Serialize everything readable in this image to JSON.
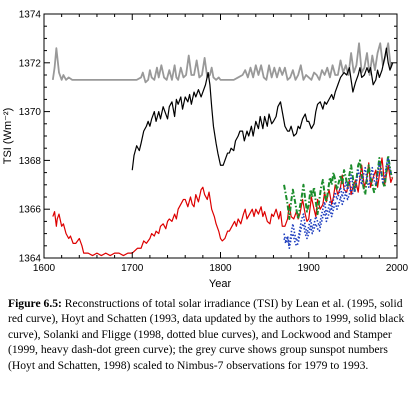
{
  "chart_data": {
    "type": "line",
    "xlabel": "Year",
    "ylabel": "TSI (Wm⁻²)",
    "xlim": [
      1600,
      2000
    ],
    "ylim": [
      1364,
      1374
    ],
    "xticks": [
      "1600",
      "1700",
      "1800",
      "1900",
      "2000"
    ],
    "yticks": [
      "1364",
      "1366",
      "1368",
      "1370",
      "1372",
      "1374"
    ],
    "grid": false,
    "series": [
      {
        "color": "#999999",
        "style": "solid",
        "x": [
          1610,
          1612,
          1614,
          1617,
          1620,
          1622,
          1625,
          1628,
          1632,
          1640,
          1650,
          1660,
          1670,
          1680,
          1690,
          1700,
          1705,
          1710,
          1712,
          1715,
          1718,
          1720,
          1722,
          1725,
          1728,
          1730,
          1733,
          1736,
          1739,
          1742,
          1745,
          1748,
          1750,
          1752,
          1755,
          1758,
          1761,
          1764,
          1767,
          1770,
          1773,
          1776,
          1779,
          1782,
          1785,
          1788,
          1790,
          1792,
          1795,
          1798,
          1800,
          1805,
          1810,
          1815,
          1820,
          1825,
          1828,
          1831,
          1834,
          1837,
          1840,
          1843,
          1846,
          1849,
          1852,
          1855,
          1858,
          1861,
          1864,
          1867,
          1870,
          1873,
          1876,
          1879,
          1882,
          1885,
          1888,
          1891,
          1894,
          1897,
          1900,
          1903,
          1906,
          1909,
          1912,
          1915,
          1918,
          1921,
          1924,
          1927,
          1930,
          1933,
          1936,
          1939,
          1942,
          1945,
          1948,
          1951,
          1954,
          1957,
          1960,
          1963,
          1966,
          1969,
          1972,
          1975,
          1978,
          1981,
          1984,
          1987,
          1990,
          1993,
          1995
        ],
        "y": [
          1371.3,
          1371.8,
          1372.6,
          1371.6,
          1371.3,
          1371.5,
          1371.3,
          1371.4,
          1371.3,
          1371.3,
          1371.3,
          1371.3,
          1371.3,
          1371.3,
          1371.3,
          1371.3,
          1371.3,
          1371.4,
          1371.6,
          1371.2,
          1371.3,
          1371.7,
          1371.4,
          1371.3,
          1371.8,
          1371.4,
          1371.9,
          1371.4,
          1371.3,
          1371.7,
          1371.3,
          1371.9,
          1371.4,
          1371.3,
          1371.8,
          1371.4,
          1371.5,
          1372.3,
          1371.5,
          1371.5,
          1372.1,
          1371.4,
          1371.5,
          1372.2,
          1371.4,
          1371.5,
          1371.8,
          1371.4,
          1371.3,
          1371.4,
          1371.3,
          1371.3,
          1371.3,
          1371.3,
          1371.4,
          1371.5,
          1371.7,
          1371.4,
          1371.8,
          1371.4,
          1371.9,
          1371.5,
          1371.9,
          1371.4,
          1371.3,
          1371.9,
          1371.4,
          1371.8,
          1371.4,
          1371.8,
          1371.5,
          1371.8,
          1371.3,
          1371.4,
          1371.7,
          1371.3,
          1371.5,
          1371.9,
          1371.3,
          1371.5,
          1371.4,
          1371.3,
          1371.6,
          1371.5,
          1371.3,
          1371.7,
          1371.5,
          1371.8,
          1371.4,
          1371.9,
          1371.5,
          1371.5,
          1372.1,
          1371.6,
          1371.9,
          1371.5,
          1372.4,
          1371.6,
          1371.9,
          1372.8,
          1371.6,
          1371.8,
          1372.4,
          1371.5,
          1372.3,
          1371.7,
          1372.4,
          1372.8,
          1371.9,
          1372.3,
          1372.8,
          1371.8,
          1372.0
        ]
      },
      {
        "color": "#000000",
        "style": "solid",
        "x": [
          1700,
          1702,
          1705,
          1708,
          1710,
          1713,
          1716,
          1718,
          1720,
          1722,
          1725,
          1727,
          1730,
          1732,
          1735,
          1737,
          1740,
          1742,
          1745,
          1748,
          1750,
          1752,
          1755,
          1757,
          1760,
          1763,
          1765,
          1767,
          1770,
          1772,
          1775,
          1778,
          1780,
          1783,
          1786,
          1788,
          1790,
          1792,
          1795,
          1797,
          1800,
          1803,
          1806,
          1808,
          1810,
          1812,
          1815,
          1817,
          1820,
          1822,
          1825,
          1827,
          1830,
          1832,
          1835,
          1837,
          1840,
          1843,
          1845,
          1848,
          1850,
          1853,
          1855,
          1858,
          1860,
          1863,
          1865,
          1868,
          1870,
          1873,
          1876,
          1878,
          1880,
          1883,
          1886,
          1888,
          1890,
          1893,
          1896,
          1898,
          1900,
          1903,
          1906,
          1908,
          1910,
          1913,
          1916,
          1918,
          1920,
          1923,
          1926,
          1928,
          1930,
          1933,
          1936,
          1938,
          1940,
          1943,
          1946,
          1948,
          1950,
          1953,
          1956,
          1958,
          1960,
          1963,
          1966,
          1968,
          1970,
          1973,
          1976,
          1978,
          1980,
          1983,
          1986,
          1988,
          1990,
          1992,
          1995
        ],
        "y": [
          1367.6,
          1368.2,
          1368.6,
          1368.4,
          1368.7,
          1369.2,
          1369.4,
          1369.6,
          1369.4,
          1369.7,
          1370.0,
          1369.6,
          1370.0,
          1369.7,
          1370.2,
          1370.0,
          1369.7,
          1370.2,
          1370.4,
          1369.8,
          1370.5,
          1370.3,
          1370.6,
          1370.1,
          1370.6,
          1370.4,
          1370.7,
          1370.3,
          1370.8,
          1370.6,
          1370.9,
          1370.6,
          1370.8,
          1371.1,
          1371.6,
          1371.1,
          1370.2,
          1369.4,
          1368.7,
          1368.3,
          1367.8,
          1367.8,
          1368.1,
          1368.3,
          1368.3,
          1368.5,
          1368.4,
          1368.8,
          1369.0,
          1369.2,
          1369.2,
          1368.8,
          1369.2,
          1369.0,
          1369.4,
          1369.0,
          1369.6,
          1369.3,
          1369.8,
          1369.3,
          1369.8,
          1369.4,
          1369.9,
          1369.5,
          1369.6,
          1369.8,
          1370.2,
          1370.4,
          1370.0,
          1369.4,
          1369.2,
          1369.2,
          1369.4,
          1369.0,
          1369.1,
          1369.4,
          1369.3,
          1369.7,
          1369.9,
          1369.6,
          1369.6,
          1369.3,
          1369.5,
          1370.0,
          1370.3,
          1370.4,
          1370.1,
          1370.4,
          1370.3,
          1370.5,
          1370.7,
          1370.5,
          1370.8,
          1371.1,
          1371.4,
          1371.5,
          1371.6,
          1371.5,
          1371.8,
          1371.3,
          1370.8,
          1371.2,
          1371.5,
          1371.8,
          1371.4,
          1371.5,
          1371.8,
          1371.6,
          1371.8,
          1371.1,
          1371.3,
          1371.7,
          1371.4,
          1371.7,
          1372.2,
          1372.6,
          1372.0,
          1371.7,
          1372.0
        ]
      },
      {
        "color": "#dd0000",
        "style": "solid",
        "x": [
          1610,
          1612,
          1614,
          1615,
          1617,
          1620,
          1622,
          1625,
          1628,
          1630,
          1633,
          1636,
          1640,
          1643,
          1645,
          1650,
          1655,
          1660,
          1665,
          1670,
          1675,
          1680,
          1685,
          1690,
          1695,
          1700,
          1703,
          1706,
          1710,
          1713,
          1716,
          1720,
          1722,
          1725,
          1727,
          1730,
          1732,
          1735,
          1738,
          1740,
          1742,
          1745,
          1748,
          1750,
          1752,
          1755,
          1758,
          1760,
          1763,
          1766,
          1768,
          1770,
          1772,
          1775,
          1778,
          1780,
          1782,
          1785,
          1787,
          1790,
          1793,
          1795,
          1798,
          1800,
          1802,
          1805,
          1808,
          1810,
          1813,
          1816,
          1818,
          1820,
          1823,
          1826,
          1828,
          1830,
          1833,
          1836,
          1838,
          1840,
          1843,
          1846,
          1848,
          1850,
          1853,
          1856,
          1858,
          1860,
          1863,
          1866,
          1868,
          1870,
          1873,
          1876,
          1878,
          1880,
          1883,
          1886,
          1888,
          1890,
          1893,
          1896,
          1898,
          1900,
          1903,
          1906,
          1908,
          1910,
          1913,
          1916,
          1918,
          1920,
          1923,
          1926,
          1928,
          1930,
          1933,
          1936,
          1938,
          1940,
          1943,
          1946,
          1948,
          1950,
          1953,
          1956,
          1958,
          1960,
          1963,
          1966,
          1968,
          1970,
          1973,
          1976,
          1978,
          1980,
          1983,
          1986,
          1988,
          1990,
          1993,
          1995
        ],
        "y": [
          1365.7,
          1365.9,
          1365.3,
          1365.6,
          1365.8,
          1365.3,
          1365.4,
          1365.0,
          1364.8,
          1364.9,
          1364.6,
          1364.6,
          1364.8,
          1364.5,
          1364.2,
          1364.2,
          1364.1,
          1364.2,
          1364.1,
          1364.2,
          1364.1,
          1364.2,
          1364.2,
          1364.1,
          1364.2,
          1364.2,
          1364.3,
          1364.4,
          1364.4,
          1364.7,
          1364.6,
          1364.8,
          1365.0,
          1364.9,
          1365.1,
          1365.0,
          1365.3,
          1365.4,
          1365.2,
          1365.5,
          1365.6,
          1365.5,
          1365.8,
          1365.6,
          1366.0,
          1366.2,
          1366.4,
          1366.4,
          1366.1,
          1366.5,
          1366.2,
          1366.1,
          1366.6,
          1366.3,
          1366.8,
          1366.9,
          1366.6,
          1366.4,
          1366.7,
          1366.0,
          1365.7,
          1365.4,
          1365.1,
          1364.8,
          1364.7,
          1364.8,
          1365.1,
          1365.1,
          1365.3,
          1365.5,
          1365.3,
          1365.6,
          1365.4,
          1365.8,
          1366.0,
          1365.6,
          1365.8,
          1366.0,
          1365.7,
          1366.0,
          1365.8,
          1366.1,
          1365.7,
          1365.9,
          1365.5,
          1365.4,
          1365.8,
          1365.7,
          1366.0,
          1365.6,
          1365.9,
          1365.3,
          1365.3,
          1365.6,
          1366.2,
          1365.7,
          1365.6,
          1365.9,
          1365.6,
          1365.8,
          1366.4,
          1365.8,
          1365.5,
          1365.6,
          1366.5,
          1366.0,
          1365.7,
          1366.4,
          1366.0,
          1366.2,
          1366.7,
          1366.3,
          1366.8,
          1366.2,
          1366.5,
          1367.0,
          1366.6,
          1366.9,
          1367.4,
          1366.8,
          1366.7,
          1367.2,
          1366.6,
          1366.9,
          1367.2,
          1366.7,
          1367.3,
          1367.8,
          1366.9,
          1367.3,
          1367.9,
          1366.9,
          1367.3,
          1367.6,
          1366.9,
          1367.4,
          1368.1,
          1367.0,
          1367.4,
          1367.8,
          1367.1,
          1367.3
        ]
      },
      {
        "color": "#1a8c2a",
        "style": "dash-dot",
        "x": [
          1872,
          1874,
          1876,
          1878,
          1880,
          1882,
          1884,
          1886,
          1888,
          1890,
          1892,
          1894,
          1896,
          1898,
          1900,
          1902,
          1904,
          1906,
          1908,
          1910,
          1912,
          1914,
          1916,
          1918,
          1920,
          1922,
          1924,
          1926,
          1928,
          1930,
          1932,
          1934,
          1936,
          1938,
          1940,
          1942,
          1944,
          1946,
          1948,
          1950,
          1952,
          1954,
          1956,
          1958,
          1960,
          1962,
          1964,
          1966,
          1968,
          1970,
          1972,
          1974,
          1976,
          1978,
          1980,
          1982,
          1984,
          1986,
          1988,
          1990,
          1992,
          1994
        ],
        "y": [
          1367.0,
          1366.6,
          1366.2,
          1365.6,
          1366.3,
          1366.8,
          1366.4,
          1366.0,
          1365.6,
          1366.1,
          1366.5,
          1367.0,
          1366.4,
          1365.9,
          1366.2,
          1366.8,
          1366.5,
          1366.9,
          1366.3,
          1365.8,
          1366.4,
          1366.9,
          1367.2,
          1366.6,
          1366.3,
          1366.8,
          1367.3,
          1367.0,
          1367.5,
          1367.2,
          1366.8,
          1367.1,
          1367.4,
          1367.0,
          1367.6,
          1367.3,
          1366.9,
          1367.4,
          1367.8,
          1367.3,
          1366.7,
          1367.2,
          1367.8,
          1368.0,
          1367.4,
          1366.9,
          1366.6,
          1367.3,
          1367.8,
          1367.3,
          1367.0,
          1366.7,
          1366.9,
          1367.5,
          1368.1,
          1367.6,
          1367.1,
          1366.9,
          1367.6,
          1368.2,
          1367.7,
          1367.3
        ]
      },
      {
        "color": "#1f3fbf",
        "style": "dotted",
        "x": [
          1872,
          1874,
          1876,
          1878,
          1880,
          1882,
          1884,
          1886,
          1888,
          1890,
          1892,
          1894,
          1896,
          1898,
          1900,
          1902,
          1904,
          1906,
          1908,
          1910,
          1912,
          1914,
          1916,
          1918,
          1920,
          1922,
          1924,
          1926,
          1928,
          1930,
          1932,
          1934,
          1936,
          1938,
          1940,
          1942,
          1944,
          1946,
          1948,
          1950,
          1952,
          1954,
          1956,
          1958,
          1960,
          1962,
          1964,
          1966,
          1968,
          1970,
          1972,
          1974,
          1976,
          1978,
          1980,
          1982,
          1984,
          1986,
          1988,
          1990,
          1992,
          1994
        ],
        "y": [
          1365.0,
          1364.7,
          1364.9,
          1364.5,
          1365.0,
          1365.4,
          1365.0,
          1364.7,
          1364.8,
          1365.2,
          1365.6,
          1365.8,
          1365.3,
          1365.0,
          1365.3,
          1365.6,
          1365.2,
          1365.4,
          1365.7,
          1365.5,
          1365.3,
          1365.7,
          1366.0,
          1366.3,
          1365.8,
          1366.0,
          1366.3,
          1366.0,
          1366.4,
          1366.7,
          1366.4,
          1366.6,
          1366.9,
          1366.5,
          1366.8,
          1367.1,
          1366.8,
          1367.0,
          1367.4,
          1367.0,
          1366.7,
          1367.1,
          1367.6,
          1367.3,
          1367.0,
          1367.4,
          1367.7,
          1367.2,
          1366.9,
          1367.3,
          1367.7,
          1367.2,
          1367.0,
          1367.4,
          1367.9,
          1367.5,
          1367.1,
          1367.3,
          1367.8,
          1368.1,
          1367.6,
          1367.4
        ]
      },
      {
        "color": "#1f3fbf",
        "style": "dotted",
        "x": [
          1872,
          1874,
          1876,
          1878,
          1880,
          1882,
          1884,
          1886,
          1888,
          1890,
          1892,
          1894,
          1896,
          1898,
          1900,
          1902,
          1904,
          1906,
          1908,
          1910,
          1912,
          1914,
          1916,
          1918,
          1920,
          1922,
          1924,
          1926,
          1928,
          1930,
          1932,
          1934,
          1936,
          1938,
          1940,
          1942,
          1944,
          1946,
          1948,
          1950
        ],
        "y": [
          1364.8,
          1364.6,
          1364.8,
          1364.4,
          1364.8,
          1365.0,
          1364.7,
          1364.5,
          1364.6,
          1365.0,
          1365.3,
          1365.4,
          1365.0,
          1364.8,
          1365.0,
          1365.3,
          1365.0,
          1365.2,
          1365.4,
          1365.2,
          1365.1,
          1365.4,
          1365.7,
          1365.9,
          1365.5,
          1365.7,
          1366.0,
          1365.7,
          1366.0,
          1366.3,
          1366.0,
          1366.2,
          1366.5,
          1366.2,
          1366.4,
          1366.7,
          1366.4,
          1366.6,
          1366.9,
          1366.6
        ]
      }
    ]
  },
  "caption": {
    "label": "Figure 6.5:",
    "text": "Reconstructions of total solar irradiance (TSI) by Lean et al. (1995, solid red curve), Hoyt and Schatten (1993, data updated by the authors to 1999, solid black curve), Solanki and Fligge (1998, dotted blue curves), and Lockwood and Stamper (1999, heavy dash-dot green curve); the grey curve shows group sunspot numbers (Hoyt and Schatten, 1998) scaled to Nimbus-7 observations for 1979 to 1993."
  }
}
